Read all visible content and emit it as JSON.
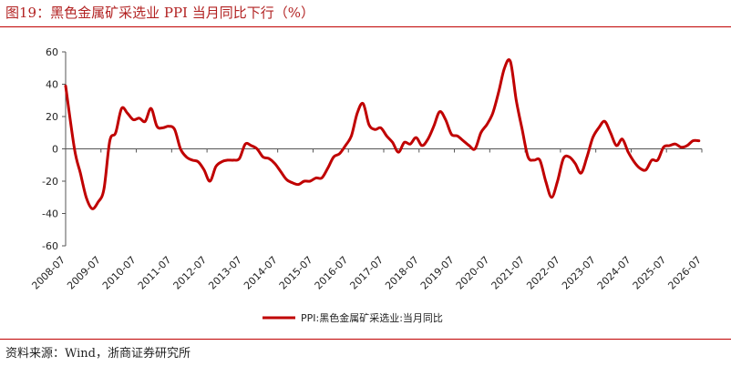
{
  "title": "图19：黑色金属矿采选业 PPI 当月同比下行（%）",
  "source": "资料来源：Wind，浙商证券研究所",
  "chart_data": {
    "type": "line",
    "title": "",
    "xlabel": "",
    "ylabel": "",
    "ylim": [
      -60,
      60
    ],
    "yticks": [
      -60,
      -40,
      -20,
      0,
      20,
      40,
      60
    ],
    "xticks": [
      "2008-07",
      "2009-07",
      "2010-07",
      "2011-07",
      "2012-07",
      "2013-07",
      "2014-07",
      "2015-07",
      "2016-07",
      "2017-07",
      "2018-07",
      "2019-07",
      "2020-07",
      "2021-07",
      "2022-07",
      "2023-07",
      "2024-07",
      "2025-07",
      "2026-07"
    ],
    "legend_position": "bottom-center",
    "grid": false,
    "series": [
      {
        "name": "PPI:黑色金属矿采选业:当月同比",
        "color": "#c00000",
        "points": [
          [
            "2008-07",
            39
          ],
          [
            "2008-10",
            0
          ],
          [
            "2008-12",
            -15
          ],
          [
            "2009-02",
            -30
          ],
          [
            "2009-04",
            -37
          ],
          [
            "2009-06",
            -33
          ],
          [
            "2009-08",
            -25
          ],
          [
            "2009-10",
            5
          ],
          [
            "2009-12",
            10
          ],
          [
            "2010-02",
            25
          ],
          [
            "2010-04",
            22
          ],
          [
            "2010-06",
            18
          ],
          [
            "2010-08",
            19
          ],
          [
            "2010-10",
            17
          ],
          [
            "2010-12",
            25
          ],
          [
            "2011-02",
            14
          ],
          [
            "2011-04",
            13
          ],
          [
            "2011-06",
            14
          ],
          [
            "2011-08",
            12
          ],
          [
            "2011-10",
            0
          ],
          [
            "2011-12",
            -5
          ],
          [
            "2012-02",
            -7
          ],
          [
            "2012-04",
            -8
          ],
          [
            "2012-06",
            -13
          ],
          [
            "2012-08",
            -20
          ],
          [
            "2012-10",
            -11
          ],
          [
            "2012-12",
            -8
          ],
          [
            "2013-02",
            -7
          ],
          [
            "2013-04",
            -7
          ],
          [
            "2013-06",
            -6
          ],
          [
            "2013-08",
            3
          ],
          [
            "2013-10",
            2
          ],
          [
            "2013-12",
            0
          ],
          [
            "2014-02",
            -5
          ],
          [
            "2014-04",
            -6
          ],
          [
            "2014-06",
            -9
          ],
          [
            "2014-08",
            -14
          ],
          [
            "2014-10",
            -19
          ],
          [
            "2014-12",
            -21
          ],
          [
            "2015-02",
            -22
          ],
          [
            "2015-04",
            -20
          ],
          [
            "2015-06",
            -20
          ],
          [
            "2015-08",
            -18
          ],
          [
            "2015-10",
            -18
          ],
          [
            "2015-12",
            -12
          ],
          [
            "2016-02",
            -5
          ],
          [
            "2016-04",
            -3
          ],
          [
            "2016-06",
            2
          ],
          [
            "2016-08",
            8
          ],
          [
            "2016-10",
            22
          ],
          [
            "2016-12",
            28
          ],
          [
            "2017-02",
            15
          ],
          [
            "2017-04",
            12
          ],
          [
            "2017-06",
            13
          ],
          [
            "2017-08",
            8
          ],
          [
            "2017-10",
            4
          ],
          [
            "2017-12",
            -2
          ],
          [
            "2018-02",
            4
          ],
          [
            "2018-04",
            3
          ],
          [
            "2018-06",
            7
          ],
          [
            "2018-08",
            2
          ],
          [
            "2018-10",
            6
          ],
          [
            "2018-12",
            14
          ],
          [
            "2019-02",
            23
          ],
          [
            "2019-04",
            18
          ],
          [
            "2019-06",
            9
          ],
          [
            "2019-08",
            8
          ],
          [
            "2019-10",
            5
          ],
          [
            "2019-12",
            2
          ],
          [
            "2020-02",
            0
          ],
          [
            "2020-04",
            10
          ],
          [
            "2020-06",
            15
          ],
          [
            "2020-08",
            22
          ],
          [
            "2020-10",
            35
          ],
          [
            "2020-12",
            50
          ],
          [
            "2021-02",
            54
          ],
          [
            "2021-04",
            30
          ],
          [
            "2021-06",
            12
          ],
          [
            "2021-08",
            -5
          ],
          [
            "2021-10",
            -7
          ],
          [
            "2021-12",
            -7
          ],
          [
            "2022-02",
            -20
          ],
          [
            "2022-04",
            -30
          ],
          [
            "2022-06",
            -20
          ],
          [
            "2022-08",
            -6
          ],
          [
            "2022-10",
            -5
          ],
          [
            "2022-12",
            -9
          ],
          [
            "2023-02",
            -15
          ],
          [
            "2023-04",
            -5
          ],
          [
            "2023-06",
            7
          ],
          [
            "2023-08",
            13
          ],
          [
            "2023-10",
            17
          ],
          [
            "2023-12",
            10
          ],
          [
            "2024-02",
            2
          ],
          [
            "2024-04",
            6
          ],
          [
            "2024-06",
            -2
          ],
          [
            "2024-08",
            -8
          ],
          [
            "2024-10",
            -12
          ],
          [
            "2024-12",
            -13
          ],
          [
            "2025-02",
            -7
          ],
          [
            "2025-04",
            -7
          ],
          [
            "2025-06",
            1
          ],
          [
            "2025-08",
            2
          ],
          [
            "2025-10",
            3
          ],
          [
            "2025-12",
            1
          ],
          [
            "2026-02",
            2
          ],
          [
            "2026-04",
            5
          ],
          [
            "2026-06",
            5
          ]
        ]
      }
    ]
  }
}
